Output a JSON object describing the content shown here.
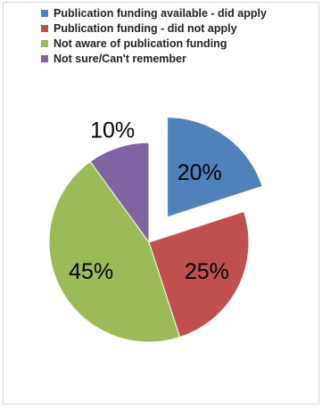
{
  "chart_data": {
    "type": "pie",
    "title": "",
    "legend_position": "top",
    "exploded_slice": 0,
    "series": [
      {
        "name": "Publication funding available -  did apply",
        "value": 20,
        "label": "20%",
        "color": "#4F81BD"
      },
      {
        "name": "Publication funding - did not apply",
        "value": 25,
        "label": "25%",
        "color": "#C0504D"
      },
      {
        "name": "Not aware of publication funding",
        "value": 45,
        "label": "45%",
        "color": "#9BBB59"
      },
      {
        "name": "Not sure/Can't remember",
        "value": 10,
        "label": "10%",
        "color": "#8064A2"
      }
    ]
  }
}
